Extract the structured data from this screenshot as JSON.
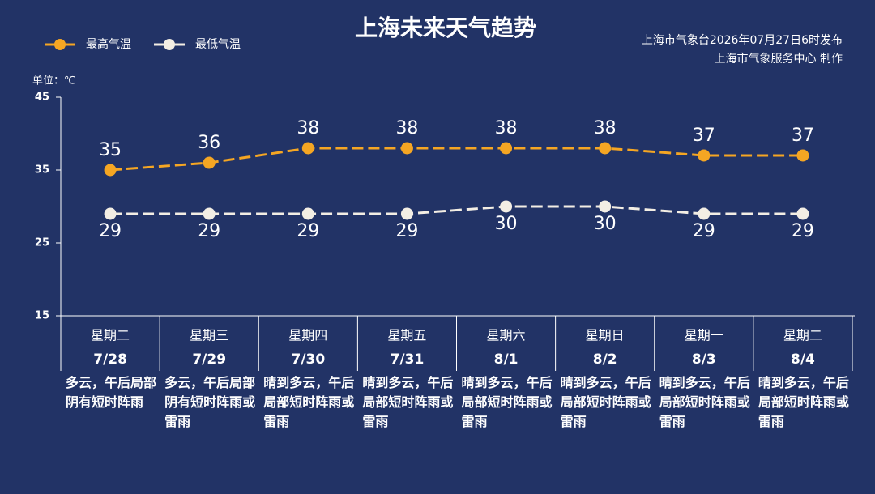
{
  "chart_data": {
    "type": "line",
    "title": "上海未来天气趋势",
    "annotations": [
      "上海市气象台2026年07月27日6时发布",
      "上海市气象服务中心 制作"
    ],
    "y_label": "单位：℃",
    "categories": [
      "7/28",
      "7/29",
      "7/30",
      "7/31",
      "8/1",
      "8/2",
      "8/3",
      "8/4"
    ],
    "weekdays": [
      "星期二",
      "星期三",
      "星期四",
      "星期五",
      "星期六",
      "星期日",
      "星期一",
      "星期二"
    ],
    "weekday_colors": [
      "#ffffff",
      "#ffffff",
      "#ffffff",
      "#ffffff",
      "#f5a623",
      "#f5a623",
      "#ffffff",
      "#ffffff"
    ],
    "descriptions": [
      "多云，午后局部阴有短时阵雨",
      "多云，午后局部阴有短时阵雨或雷雨",
      "晴到多云，午后局部短时阵雨或雷雨",
      "晴到多云，午后局部短时阵雨或雷雨",
      "晴到多云，午后局部短时阵雨或雷雨",
      "晴到多云，午后局部短时阵雨或雷雨",
      "晴到多云，午后局部短时阵雨或雷雨",
      "晴到多云，午后局部短时阵雨或雷雨"
    ],
    "series": [
      {
        "name": "最高气温",
        "color": "#f5a623",
        "values": [
          35,
          36,
          38,
          38,
          38,
          38,
          37,
          37
        ]
      },
      {
        "name": "最低气温",
        "color": "#f3eee4",
        "values": [
          29,
          29,
          29,
          29,
          30,
          30,
          29,
          29
        ]
      }
    ],
    "ylim": [
      15,
      45
    ],
    "yticks": [
      15,
      25,
      35,
      45
    ]
  }
}
